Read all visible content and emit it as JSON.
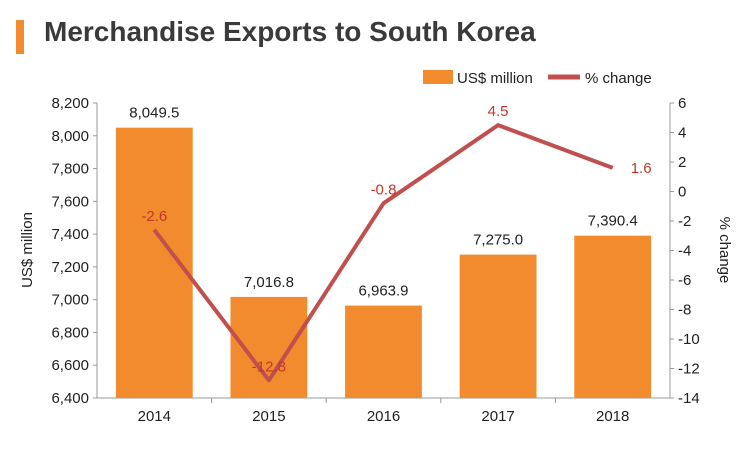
{
  "page": {
    "title": "Merchandise Exports to South Korea"
  },
  "colors": {
    "bar": "#f28a2e",
    "line": "#c0504d",
    "line_label": "#c0392b",
    "text": "#222222",
    "title_accent": "#f28a2e"
  },
  "chart_data": {
    "type": "bar",
    "title": "Merchandise Exports to South Korea",
    "categories": [
      "2014",
      "2015",
      "2016",
      "2017",
      "2018"
    ],
    "series": [
      {
        "name": "US$ million",
        "type": "bar",
        "axis": "left",
        "values": [
          8049.5,
          7016.8,
          6963.9,
          7275.0,
          7390.4
        ],
        "labels": [
          "8,049.5",
          "7,016.8",
          "6,963.9",
          "7,275.0",
          "7,390.4"
        ]
      },
      {
        "name": "% change",
        "type": "line",
        "axis": "right",
        "values": [
          -2.6,
          -12.8,
          -0.8,
          4.5,
          1.6
        ],
        "labels": [
          "-2.6",
          "-12.8",
          "-0.8",
          "4.5",
          "1.6"
        ]
      }
    ],
    "ylabel": "US$ million",
    "ylabel_right": "% change",
    "ylim": [
      6400,
      8200
    ],
    "yticks": [
      "6,400",
      "6,600",
      "6,800",
      "7,000",
      "7,200",
      "7,400",
      "7,600",
      "7,800",
      "8,000",
      "8,200"
    ],
    "ylim_right": [
      -14,
      6
    ],
    "yticks_right": [
      "-14",
      "-12",
      "-10",
      "-8",
      "-6",
      "-4",
      "-2",
      "0",
      "2",
      "4",
      "6"
    ],
    "legend": "top-right",
    "grid": false
  }
}
